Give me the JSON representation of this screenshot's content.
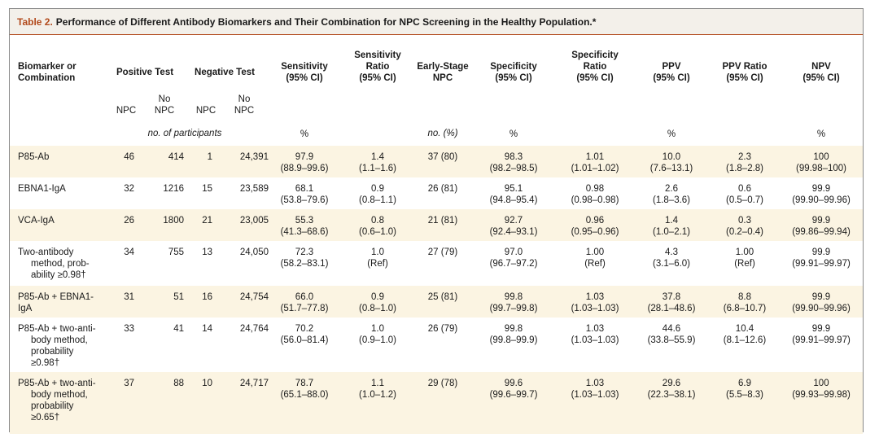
{
  "title": {
    "label": "Table 2.",
    "text": "Performance of Different Antibody Biomarkers and Their Combination for NPC Screening in the Healthy Population.*"
  },
  "headers": {
    "biomarker": [
      "Biomarker or",
      "Combination"
    ],
    "positive": "Positive Test",
    "negative": "Negative Test",
    "sensitivity": [
      "Sensitivity",
      "(95% CI)"
    ],
    "sensitivity_ratio": [
      "Sensitivity",
      "Ratio",
      "(95% CI)"
    ],
    "early_stage": [
      "Early-Stage",
      "NPC"
    ],
    "specificity": [
      "Specificity",
      "(95% CI)"
    ],
    "specificity_ratio": [
      "Specificity",
      "Ratio",
      "(95% CI)"
    ],
    "ppv": [
      "PPV",
      "(95% CI)"
    ],
    "ppv_ratio": [
      "PPV Ratio",
      "(95% CI)"
    ],
    "npv": [
      "NPV",
      "(95% CI)"
    ],
    "sub_npc": "NPC",
    "sub_no": "No",
    "sub_nonpc": "NPC"
  },
  "units": {
    "participants": "no. of participants",
    "pct": "%",
    "no_pct": "no. (%)"
  },
  "rows": [
    {
      "label": [
        "P85-Ab"
      ],
      "pos_npc": "46",
      "pos_no": "414",
      "neg_npc": "1",
      "neg_no": "24,391",
      "sens": [
        "97.9",
        "(88.9–99.6)"
      ],
      "sens_ratio": [
        "1.4",
        "(1.1–1.6)"
      ],
      "early": "37 (80)",
      "spec": [
        "98.3",
        "(98.2–98.5)"
      ],
      "spec_ratio": [
        "1.01",
        "(1.01–1.02)"
      ],
      "ppv": [
        "10.0",
        "(7.6–13.1)"
      ],
      "ppv_ratio": [
        "2.3",
        "(1.8–2.8)"
      ],
      "npv": [
        "100",
        "(99.98–100)"
      ]
    },
    {
      "label": [
        "EBNA1-IgA"
      ],
      "pos_npc": "32",
      "pos_no": "1216",
      "neg_npc": "15",
      "neg_no": "23,589",
      "sens": [
        "68.1",
        "(53.8–79.6)"
      ],
      "sens_ratio": [
        "0.9",
        "(0.8–1.1)"
      ],
      "early": "26 (81)",
      "spec": [
        "95.1",
        "(94.8–95.4)"
      ],
      "spec_ratio": [
        "0.98",
        "(0.98–0.98)"
      ],
      "ppv": [
        "2.6",
        "(1.8–3.6)"
      ],
      "ppv_ratio": [
        "0.6",
        "(0.5–0.7)"
      ],
      "npv": [
        "99.9",
        "(99.90–99.96)"
      ]
    },
    {
      "label": [
        "VCA-IgA"
      ],
      "pos_npc": "26",
      "pos_no": "1800",
      "neg_npc": "21",
      "neg_no": "23,005",
      "sens": [
        "55.3",
        "(41.3–68.6)"
      ],
      "sens_ratio": [
        "0.8",
        "(0.6–1.0)"
      ],
      "early": "21 (81)",
      "spec": [
        "92.7",
        "(92.4–93.1)"
      ],
      "spec_ratio": [
        "0.96",
        "(0.95–0.96)"
      ],
      "ppv": [
        "1.4",
        "(1.0–2.1)"
      ],
      "ppv_ratio": [
        "0.3",
        "(0.2–0.4)"
      ],
      "npv": [
        "99.9",
        "(99.86–99.94)"
      ]
    },
    {
      "label": [
        "Two-antibody",
        "method, prob-",
        "ability ≥0.98†"
      ],
      "pos_npc": "34",
      "pos_no": "755",
      "neg_npc": "13",
      "neg_no": "24,050",
      "sens": [
        "72.3",
        "(58.2–83.1)"
      ],
      "sens_ratio": [
        "1.0",
        "(Ref)"
      ],
      "early": "27 (79)",
      "spec": [
        "97.0",
        "(96.7–97.2)"
      ],
      "spec_ratio": [
        "1.00",
        "(Ref)"
      ],
      "ppv": [
        "4.3",
        "(3.1–6.0)"
      ],
      "ppv_ratio": [
        "1.00",
        "(Ref)"
      ],
      "npv": [
        "99.9",
        "(99.91–99.97)"
      ]
    },
    {
      "label": [
        "P85-Ab + EBNA1-",
        "IgA"
      ],
      "pos_npc": "31",
      "pos_no": "51",
      "neg_npc": "16",
      "neg_no": "24,754",
      "sens": [
        "66.0",
        "(51.7–77.8)"
      ],
      "sens_ratio": [
        "0.9",
        "(0.8–1.0)"
      ],
      "early": "25 (81)",
      "spec": [
        "99.8",
        "(99.7–99.8)"
      ],
      "spec_ratio": [
        "1.03",
        "(1.03–1.03)"
      ],
      "ppv": [
        "37.8",
        "(28.1–48.6)"
      ],
      "ppv_ratio": [
        "8.8",
        "(6.8–10.7)"
      ],
      "npv": [
        "99.9",
        "(99.90–99.96)"
      ]
    },
    {
      "label": [
        "P85-Ab + two-anti-",
        "body method,",
        "probability",
        "≥0.98†"
      ],
      "pos_npc": "33",
      "pos_no": "41",
      "neg_npc": "14",
      "neg_no": "24,764",
      "sens": [
        "70.2",
        "(56.0–81.4)"
      ],
      "sens_ratio": [
        "1.0",
        "(0.9–1.0)"
      ],
      "early": "26 (79)",
      "spec": [
        "99.8",
        "(99.8–99.9)"
      ],
      "spec_ratio": [
        "1.03",
        "(1.03–1.03)"
      ],
      "ppv": [
        "44.6",
        "(33.8–55.9)"
      ],
      "ppv_ratio": [
        "10.4",
        "(8.1–12.6)"
      ],
      "npv": [
        "99.9",
        "(99.91–99.97)"
      ]
    },
    {
      "label": [
        "P85-Ab + two-anti-",
        "body method,",
        "probability",
        "≥0.65†"
      ],
      "pos_npc": "37",
      "pos_no": "88",
      "neg_npc": "10",
      "neg_no": "24,717",
      "sens": [
        "78.7",
        "(65.1–88.0)"
      ],
      "sens_ratio": [
        "1.1",
        "(1.0–1.2)"
      ],
      "early": "29 (78)",
      "spec": [
        "99.6",
        "(99.6–99.7)"
      ],
      "spec_ratio": [
        "1.03",
        "(1.03–1.03)"
      ],
      "ppv": [
        "29.6",
        "(22.3–38.1)"
      ],
      "ppv_ratio": [
        "6.9",
        "(5.5–8.3)"
      ],
      "npv": [
        "100",
        "(99.93–99.98)"
      ]
    }
  ],
  "colors": {
    "accent": "#b24a1c",
    "shade": "#fbf4e2",
    "title_bg": "#f3f0ea"
  }
}
